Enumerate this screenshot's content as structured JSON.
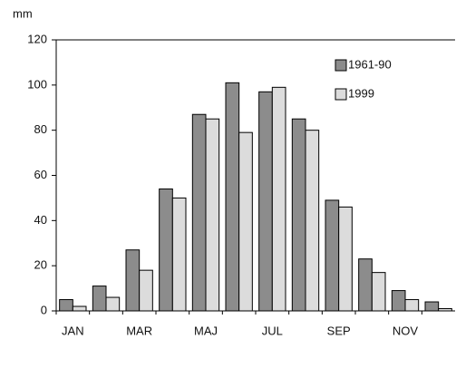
{
  "chart_data": {
    "type": "bar",
    "y_label": "mm",
    "categories": [
      "JAN",
      null,
      "MAR",
      null,
      "MAJ",
      null,
      "JUL",
      null,
      "SEP",
      null,
      "NOV",
      null
    ],
    "series": [
      {
        "name": "1961-90",
        "color": "#8c8c8c",
        "values": [
          5,
          11,
          27,
          54,
          87,
          101,
          97,
          85,
          49,
          23,
          9,
          4
        ]
      },
      {
        "name": "1999",
        "color": "#dcdcdc",
        "values": [
          2,
          6,
          18,
          50,
          85,
          79,
          99,
          80,
          46,
          17,
          5,
          1
        ]
      }
    ],
    "ylim": [
      0,
      120
    ],
    "yticks": [
      0,
      20,
      40,
      60,
      80,
      100,
      120
    ],
    "legend": "upper right"
  }
}
